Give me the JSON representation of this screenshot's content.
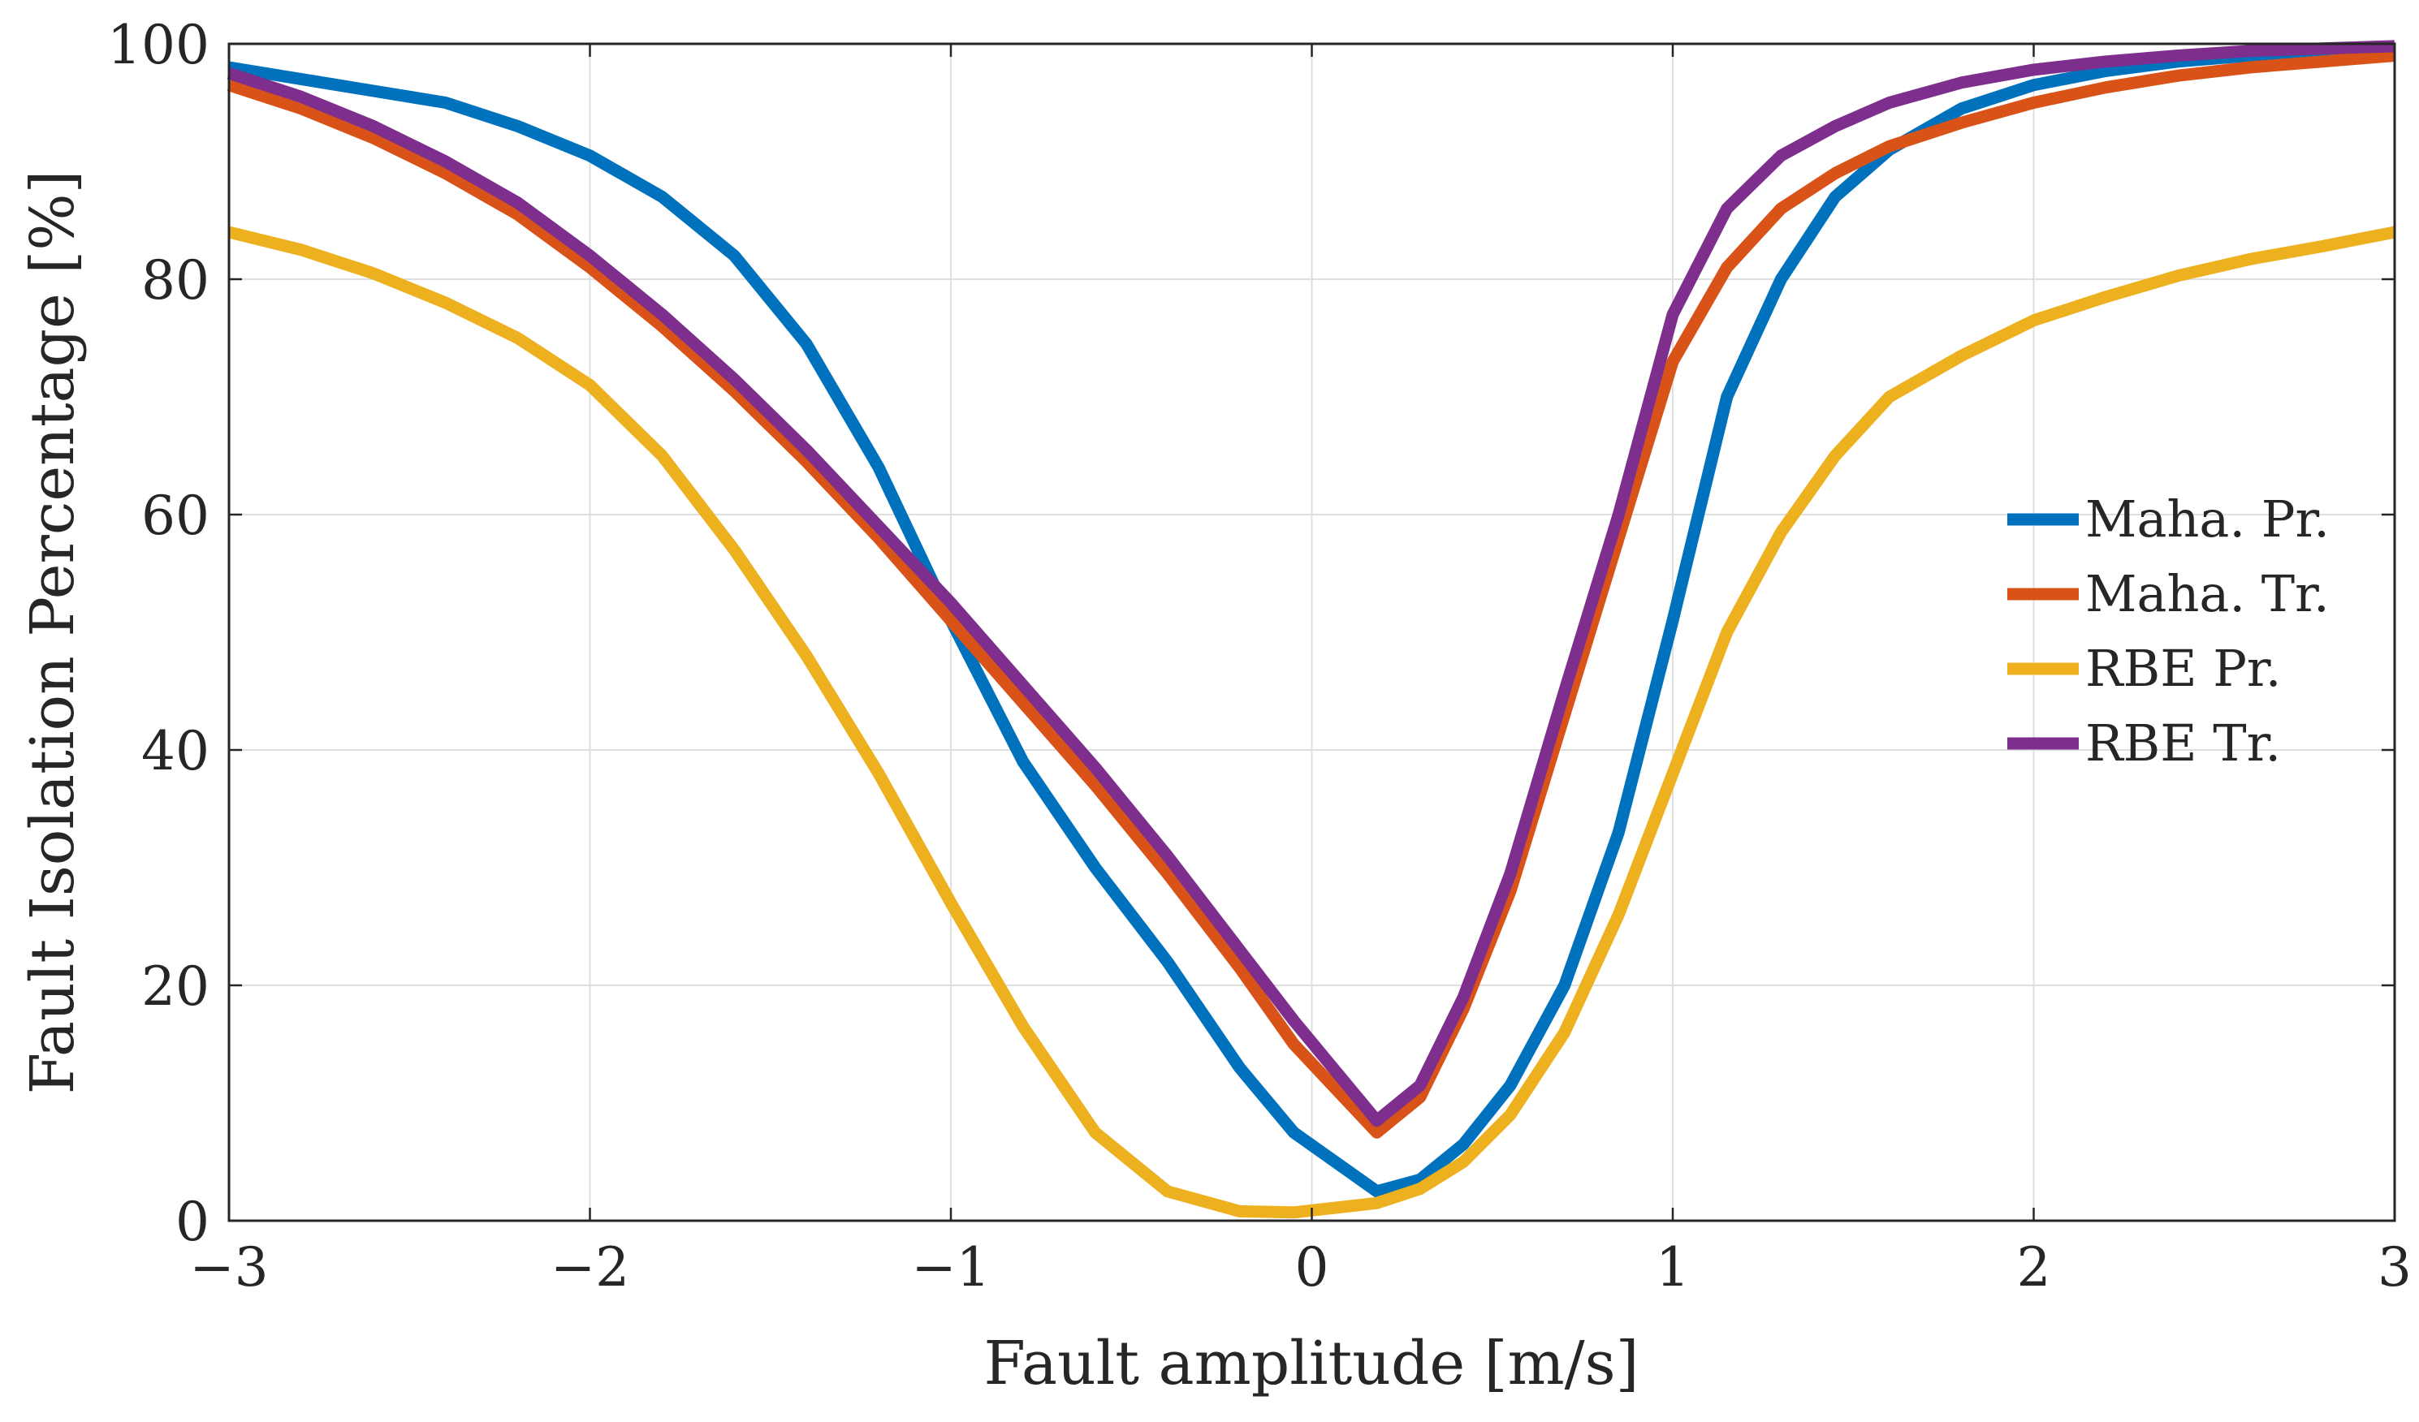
{
  "chart_data": {
    "type": "line",
    "title": "",
    "xlabel": "Fault amplitude [m/s]",
    "ylabel": "Fault Isolation Percentage [%]",
    "xlim": [
      -3,
      3
    ],
    "ylim": [
      0,
      100
    ],
    "grid": true,
    "legend_location": "right",
    "xticks": [
      -3,
      -2,
      -1,
      0,
      1,
      2,
      3
    ],
    "xtick_labels": [
      "−3",
      "−2",
      "−1",
      "0",
      "1",
      "2",
      "3"
    ],
    "yticks": [
      0,
      20,
      40,
      60,
      80,
      100
    ],
    "ytick_labels": [
      "0",
      "20",
      "40",
      "60",
      "80",
      "100"
    ],
    "x": [
      -3.0,
      -2.8,
      -2.6,
      -2.4,
      -2.2,
      -2.0,
      -1.8,
      -1.6,
      -1.4,
      -1.2,
      -1.0,
      -0.8,
      -0.6,
      -0.4,
      -0.2,
      -0.05,
      0.18,
      0.3,
      0.42,
      0.55,
      0.7,
      0.85,
      1.0,
      1.15,
      1.3,
      1.45,
      1.6,
      1.8,
      2.0,
      2.2,
      2.4,
      2.6,
      2.8,
      3.0
    ],
    "series": [
      {
        "name": "Maha. Pr.",
        "color": "#0072BD",
        "values": [
          98,
          97,
          96,
          95,
          93,
          90.5,
          87,
          82,
          74.5,
          64,
          51,
          39,
          30,
          22,
          13,
          7.5,
          2.5,
          3.5,
          6.5,
          11.5,
          20,
          33,
          51,
          70,
          80,
          87,
          91,
          94.5,
          96.5,
          97.7,
          98.5,
          99,
          99.3,
          99.5
        ]
      },
      {
        "name": "Maha. Tr.",
        "color": "#D95319",
        "values": [
          96.5,
          94.5,
          92,
          89,
          85.5,
          81,
          76,
          70.5,
          64.5,
          58,
          51,
          44,
          37,
          29.5,
          21.5,
          15,
          7.5,
          10.5,
          18,
          28,
          43,
          58,
          73,
          81,
          86,
          89,
          91.3,
          93.3,
          95,
          96.3,
          97.3,
          98,
          98.5,
          99
        ]
      },
      {
        "name": "RBE Pr.",
        "color": "#EDB120",
        "values": [
          84,
          82.5,
          80.5,
          78,
          75,
          71,
          65,
          57,
          48,
          38,
          27,
          16.5,
          7.5,
          2.5,
          0.8,
          0.7,
          1.5,
          2.7,
          5,
          9,
          16,
          26,
          38,
          50,
          58.5,
          65,
          70,
          73.5,
          76.5,
          78.5,
          80.3,
          81.7,
          82.8,
          84
        ]
      },
      {
        "name": "RBE Tr.",
        "color": "#7E2F8E",
        "values": [
          97.5,
          95.5,
          93,
          90,
          86.5,
          82,
          77,
          71.5,
          65.5,
          59,
          52.5,
          45.5,
          38.5,
          31,
          23,
          17,
          8.5,
          11.5,
          19,
          29.5,
          45,
          60,
          77,
          86,
          90.5,
          93,
          95,
          96.7,
          97.8,
          98.5,
          99,
          99.4,
          99.6,
          99.8
        ]
      }
    ]
  }
}
